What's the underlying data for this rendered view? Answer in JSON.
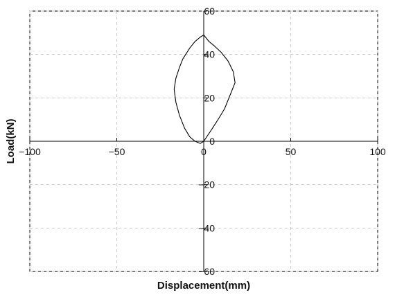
{
  "chart_data": {
    "type": "line",
    "title": "",
    "xlabel": "Displacement(mm)",
    "ylabel": "Load(kN)",
    "xlim": [
      -100,
      100
    ],
    "ylim": [
      -60,
      60
    ],
    "xticks": [
      -100,
      -50,
      0,
      50,
      100
    ],
    "yticks": [
      -60,
      -40,
      -20,
      0,
      20,
      40,
      60
    ],
    "xtick_labels": [
      "−100",
      "−50",
      "0",
      "50",
      "100"
    ],
    "ytick_labels": [
      "−60",
      "−40",
      "−20",
      "0",
      "20",
      "40",
      "60"
    ],
    "grid": true,
    "grid_style": "dashed",
    "legend": "none",
    "colors": {
      "line": "#000000",
      "axis": "#000000",
      "grid": "#c8c8c8"
    },
    "series": [
      {
        "x": [
          0,
          5,
          9,
          12,
          14,
          16,
          18,
          17,
          14,
          10,
          6,
          3,
          1,
          0,
          -2,
          -5,
          -8,
          -12,
          -14,
          -16,
          -17,
          -16,
          -14,
          -11,
          -8,
          -5,
          -2,
          0
        ],
        "y": [
          0,
          6,
          11,
          15,
          19,
          23,
          27,
          32,
          37,
          41,
          44,
          46,
          48,
          49,
          48,
          46,
          43,
          38,
          34,
          29,
          24,
          18,
          12,
          6,
          2,
          0,
          -1,
          0
        ]
      }
    ]
  }
}
